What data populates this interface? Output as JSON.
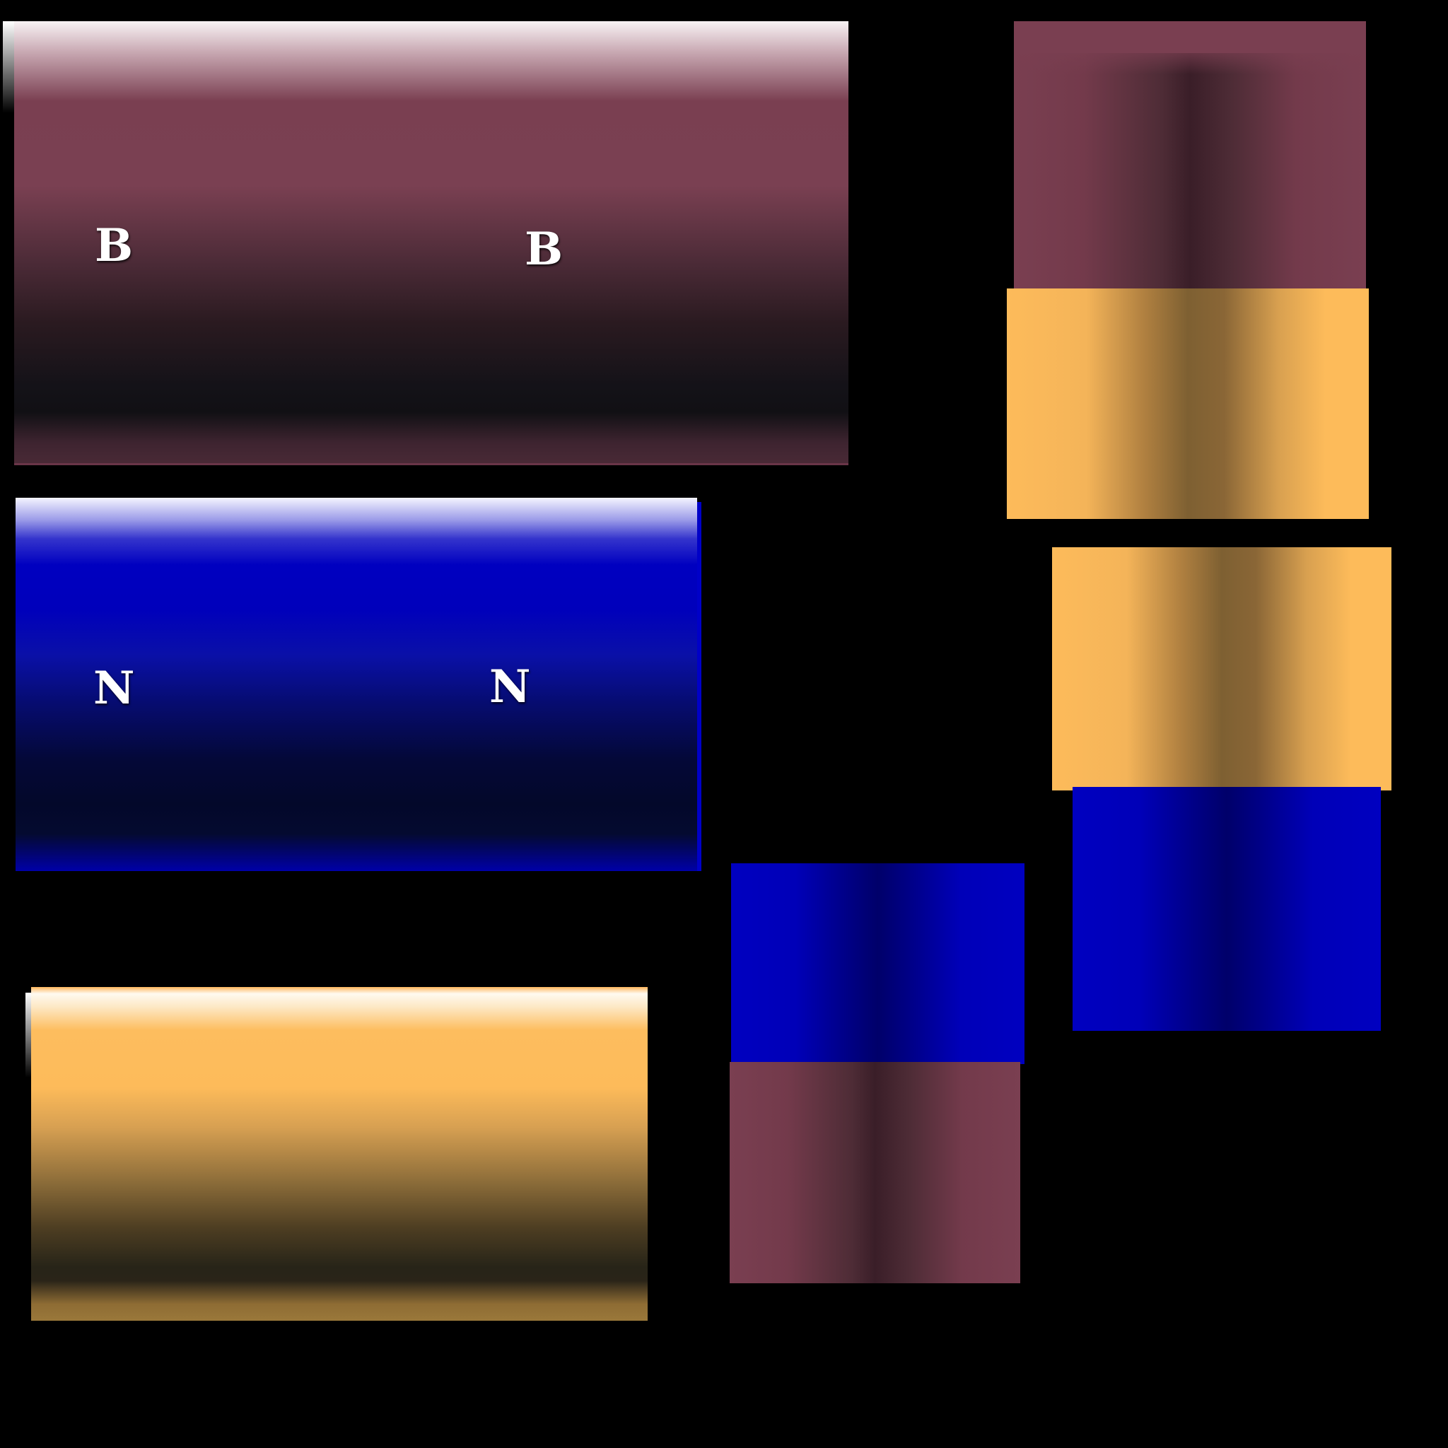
{
  "panels": {
    "maroon_wide": {
      "letters": [
        "B",
        "B"
      ],
      "color": "#7a3f51"
    },
    "blue_wide": {
      "letters": [
        "N",
        "N"
      ],
      "color": "#0000c0"
    },
    "gold_wide": {
      "color": "#fdbb5a"
    },
    "squares": {
      "maroon_top": {
        "color": "#7a3f51"
      },
      "gold_a": {
        "color": "#fdbb5a"
      },
      "gold_b": {
        "color": "#fdbb5a"
      },
      "blue_right": {
        "color": "#0000c0"
      },
      "blue_mid": {
        "color": "#0000c0"
      },
      "maroon_bottom": {
        "color": "#7a3f51"
      }
    }
  },
  "background_color": "#000000"
}
